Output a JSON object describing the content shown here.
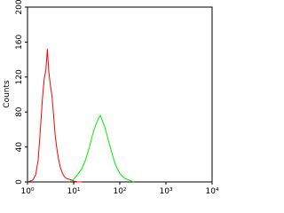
{
  "chart_data": {
    "type": "line",
    "y_label": "Counts",
    "x_log": true,
    "xlim": [
      1,
      10000
    ],
    "xticks": [
      {
        "value": 1,
        "label": "10⁰"
      },
      {
        "value": 10,
        "label": "10¹"
      },
      {
        "value": 100,
        "label": "10²"
      },
      {
        "value": 1000,
        "label": "10³"
      },
      {
        "value": 10000,
        "label": "10⁴"
      }
    ],
    "ylim": [
      0,
      200
    ],
    "yticks": [
      0,
      40,
      80,
      120,
      160,
      200
    ],
    "series": [
      {
        "color": "#ff0000",
        "x": [
          1,
          1.3,
          1.5,
          1.7,
          1.9,
          2.1,
          2.3,
          2.5,
          2.7,
          2.9,
          3.1,
          3.4,
          3.7,
          4.0,
          4.4,
          4.8,
          5.2,
          5.7,
          6.3,
          7,
          8,
          9,
          10,
          12,
          15
        ],
        "values": [
          0,
          2,
          8,
          25,
          60,
          95,
          118,
          128,
          152,
          126,
          112,
          98,
          75,
          52,
          35,
          24,
          16,
          10,
          6,
          4,
          3,
          2,
          1,
          0,
          0
        ]
      },
      {
        "color": "#00ee00",
        "x": [
          8,
          10,
          12,
          15,
          18,
          22,
          26,
          30,
          34,
          38,
          42,
          48,
          55,
          62,
          70,
          80,
          95,
          110,
          130,
          160,
          200
        ],
        "values": [
          0,
          3,
          8,
          15,
          25,
          40,
          55,
          65,
          72,
          76,
          70,
          62,
          50,
          40,
          30,
          20,
          12,
          7,
          4,
          2,
          0
        ]
      }
    ]
  }
}
